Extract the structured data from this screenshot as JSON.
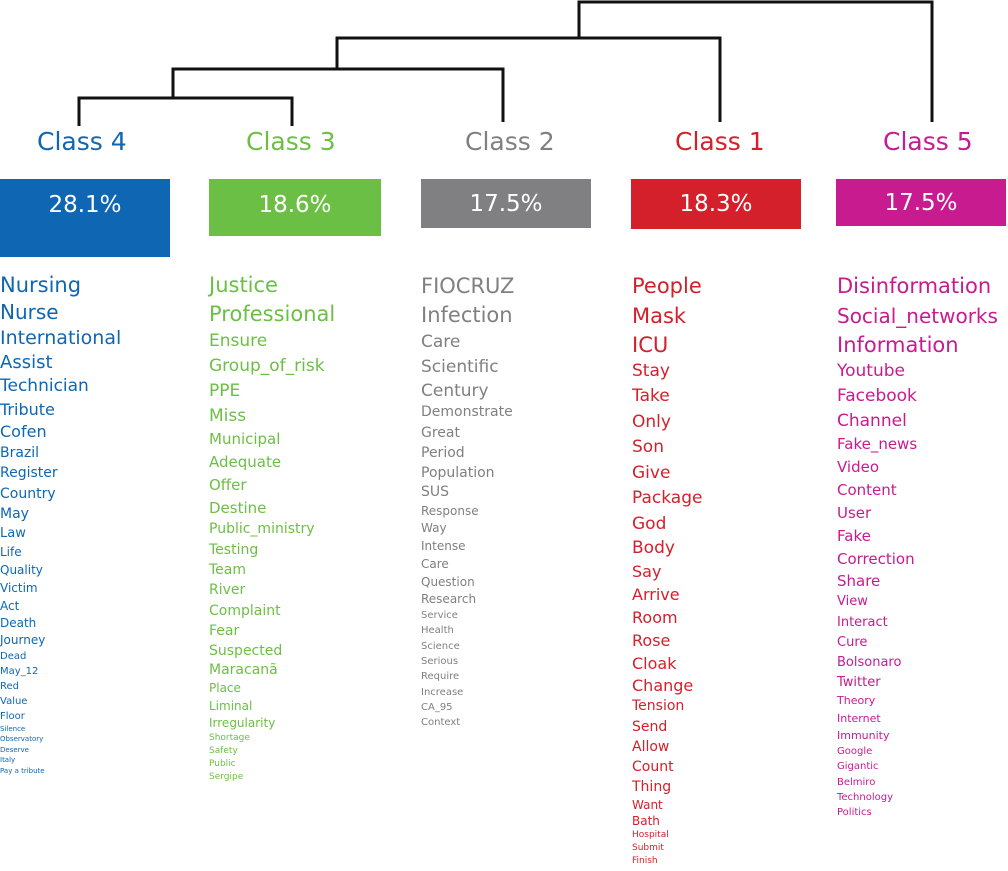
{
  "classes": [
    {
      "title": "Class  4",
      "percent": "28.1%",
      "color": "#0f66b2",
      "words": [
        "Nursing",
        "Nurse",
        "International",
        "Assist",
        "Technician",
        "Tribute",
        "Cofen",
        "Brazil",
        "Register",
        "Country",
        "May",
        "Law",
        "Life",
        "Quality",
        "Victim",
        "Act",
        "Death",
        "Journey",
        "Dead",
        "May_12",
        "Red",
        "Value",
        "Floor",
        "Silence",
        "Observatory",
        "Deserve",
        "Italy",
        "Pay a tribute"
      ]
    },
    {
      "title": "Class  3",
      "percent": "18.6%",
      "color": "#6cbf45",
      "words": [
        "Justice",
        "Professional",
        "Ensure",
        "Group_of_risk",
        "PPE",
        "Miss",
        "Municipal",
        "Adequate",
        "Offer",
        "Destine",
        "Public_ministry",
        "Testing",
        "Team",
        "River",
        "Complaint",
        "Fear",
        "Suspected",
        "Maracanã",
        "Place",
        "Liminal",
        "Irregularity",
        "Shortage",
        "Safety",
        "Public",
        "Sergipe"
      ]
    },
    {
      "title": "Class  2",
      "percent": "17.5%",
      "color": "#808083",
      "words": [
        "FIOCRUZ",
        "Infection",
        "Care",
        "Scientific",
        "Century",
        "Demonstrate",
        "Great",
        "Period",
        "Population",
        "SUS",
        "Response",
        "Way",
        "Intense",
        "Care",
        "Question",
        "Research",
        "Service",
        "Health",
        "Science",
        "Serious",
        "Require",
        "Increase",
        "CA_95",
        "Context"
      ]
    },
    {
      "title": "Class  1",
      "percent": "18.3%",
      "color": "#d4202b",
      "words": [
        "People",
        "Mask",
        "ICU",
        "Stay",
        "Take",
        "Only",
        "Son",
        "Give",
        "Package",
        "God",
        "Body",
        "Say",
        "Arrive",
        "Room",
        "Rose",
        "Cloak",
        "Change",
        "Tension",
        "Send",
        "Allow",
        "Count",
        "Thing",
        "Want",
        "Bath",
        "Hospital",
        "Submit",
        "Finish"
      ]
    },
    {
      "title": "Class  5",
      "percent": "17.5%",
      "color": "#c71b8f",
      "words": [
        "Disinformation",
        "Social_networks",
        "Information",
        "Youtube",
        "Facebook",
        "Channel",
        "Fake_news",
        "Video",
        "Content",
        "User",
        "Fake",
        "Correction",
        "Share",
        "View",
        "Interact",
        "Cure",
        "Bolsonaro",
        "Twitter",
        "Theory",
        "Internet",
        "Immunity",
        "Google",
        "Gigantic",
        "Belmiro",
        "Technology",
        "Politics"
      ]
    }
  ]
}
